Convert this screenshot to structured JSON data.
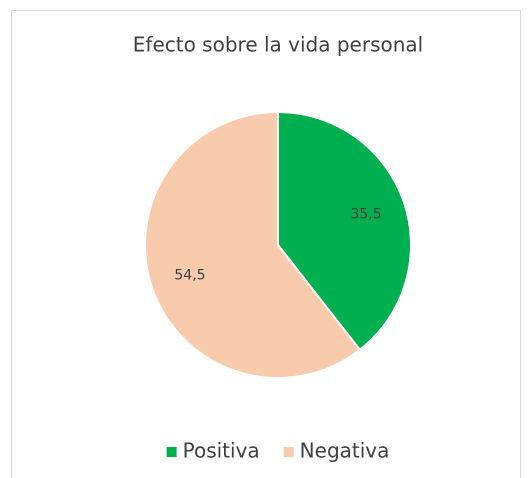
{
  "chart_data": {
    "type": "pie",
    "title": "Efecto sobre la vida personal",
    "categories": [
      "Positiva",
      "Negativa"
    ],
    "values": [
      35.5,
      54.5
    ],
    "value_labels": [
      "35,5",
      "54,5"
    ],
    "colors": [
      "#00b050",
      "#f8cbad"
    ],
    "legend": "bottom"
  }
}
